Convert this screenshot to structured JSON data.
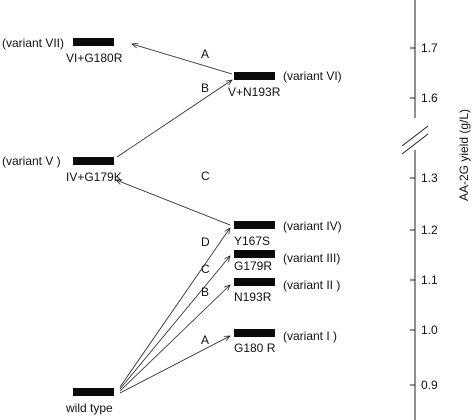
{
  "axis": {
    "title": "AA-2G yield (g/L)",
    "ticks_upper": [
      "1.7",
      "1.6"
    ],
    "ticks_lower": [
      "1.3",
      "1.2",
      "1.1",
      "1.0",
      "0.9"
    ]
  },
  "nodes": {
    "variant_vii": {
      "mutation": "VI+G180R",
      "name": "(variant VII)"
    },
    "variant_vi": {
      "mutation": "V+N193R",
      "name": "(variant VI)"
    },
    "variant_v": {
      "mutation": "IV+G179K",
      "name": "(variant V )"
    },
    "variant_iv": {
      "mutation": "Y167S",
      "name": "(variant IV)"
    },
    "variant_iii": {
      "mutation": "G179R",
      "name": "(variant III)"
    },
    "variant_ii": {
      "mutation": "N193R",
      "name": "(variant II )"
    },
    "variant_i": {
      "mutation": "G180 R",
      "name": "(variant I  )"
    },
    "wild_type": {
      "mutation": "wild type"
    }
  },
  "arrow_labels": {
    "vi_to_vii": "A",
    "v_to_vi": "B",
    "iv_to_v": "C",
    "wt_to_iv": "D",
    "wt_to_iii": "C",
    "wt_to_ii": "B",
    "wt_to_i": "A"
  }
}
